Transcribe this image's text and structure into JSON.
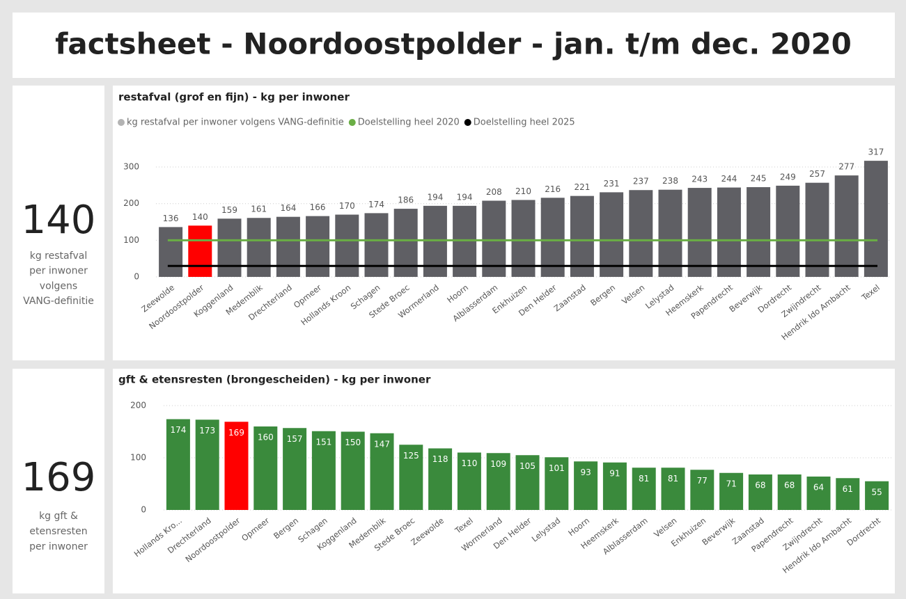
{
  "header": {
    "title": "factsheet - Noordoostpolder - jan. t/m dec. 2020"
  },
  "kpis": [
    {
      "value": 140,
      "label": [
        "kg restafval",
        "per inwoner",
        "volgens",
        "VANG-definitie"
      ]
    },
    {
      "value": 169,
      "label": [
        "kg gft &",
        "etensresten",
        "per inwoner"
      ]
    }
  ],
  "chart_data": [
    {
      "type": "bar",
      "title": "restafval (grof en fijn) - kg per inwoner",
      "categories": [
        "Zeewolde",
        "Noordoostpolder",
        "Koggenland",
        "Medemblik",
        "Drechterland",
        "Opmeer",
        "Hollands Kroon",
        "Schagen",
        "Stede Broec",
        "Wormerland",
        "Hoorn",
        "Alblasserdam",
        "Enkhuizen",
        "Den Helder",
        "Zaanstad",
        "Bergen",
        "Velsen",
        "Lelystad",
        "Heemskerk",
        "Papendrecht",
        "Beverwijk",
        "Dordrecht",
        "Zwijndrecht",
        "Hendrik Ido Ambacht",
        "Texel"
      ],
      "series": [
        {
          "name": "kg restafval per inwoner volgens VANG-definitie",
          "color": "#5f5f64",
          "legend_color": "#b3b3b3",
          "values": [
            136,
            140,
            159,
            161,
            164,
            166,
            170,
            174,
            186,
            194,
            194,
            208,
            210,
            216,
            221,
            231,
            237,
            238,
            243,
            244,
            245,
            249,
            257,
            277,
            317
          ]
        }
      ],
      "reference_lines": [
        {
          "name": "Doelstelling heel 2020",
          "color": "#6aae45",
          "value": 100
        },
        {
          "name": "Doelstelling heel 2025",
          "color": "#000000",
          "value": 30
        }
      ],
      "highlight": "Noordoostpolder",
      "highlight_color": "#ff0000",
      "label_position": "outside",
      "ylim": [
        0,
        340
      ],
      "yticks": [
        0,
        100,
        200,
        300
      ],
      "grid": true
    },
    {
      "type": "bar",
      "title": "gft & etensresten (brongescheiden) - kg per inwoner",
      "categories": [
        "Hollands Kro...",
        "Drechterland",
        "Noordoostpolder",
        "Opmeer",
        "Bergen",
        "Schagen",
        "Koggenland",
        "Medemblik",
        "Stede Broec",
        "Zeewolde",
        "Texel",
        "Wormerland",
        "Den Helder",
        "Lelystad",
        "Hoorn",
        "Heemskerk",
        "Alblasserdam",
        "Velsen",
        "Enkhuizen",
        "Beverwijk",
        "Zaanstad",
        "Papendrecht",
        "Zwijndrecht",
        "Hendrik Ido Ambacht",
        "Dordrecht"
      ],
      "series": [
        {
          "name": "gft",
          "color": "#3a8a3c",
          "values": [
            174,
            173,
            169,
            160,
            157,
            151,
            150,
            147,
            125,
            118,
            110,
            109,
            105,
            101,
            93,
            91,
            81,
            81,
            77,
            71,
            68,
            68,
            64,
            61,
            55
          ]
        }
      ],
      "highlight": "Noordoostpolder",
      "highlight_color": "#ff0000",
      "label_position": "inside",
      "ylim": [
        0,
        200
      ],
      "yticks": [
        0,
        100,
        200
      ],
      "grid": true
    }
  ]
}
